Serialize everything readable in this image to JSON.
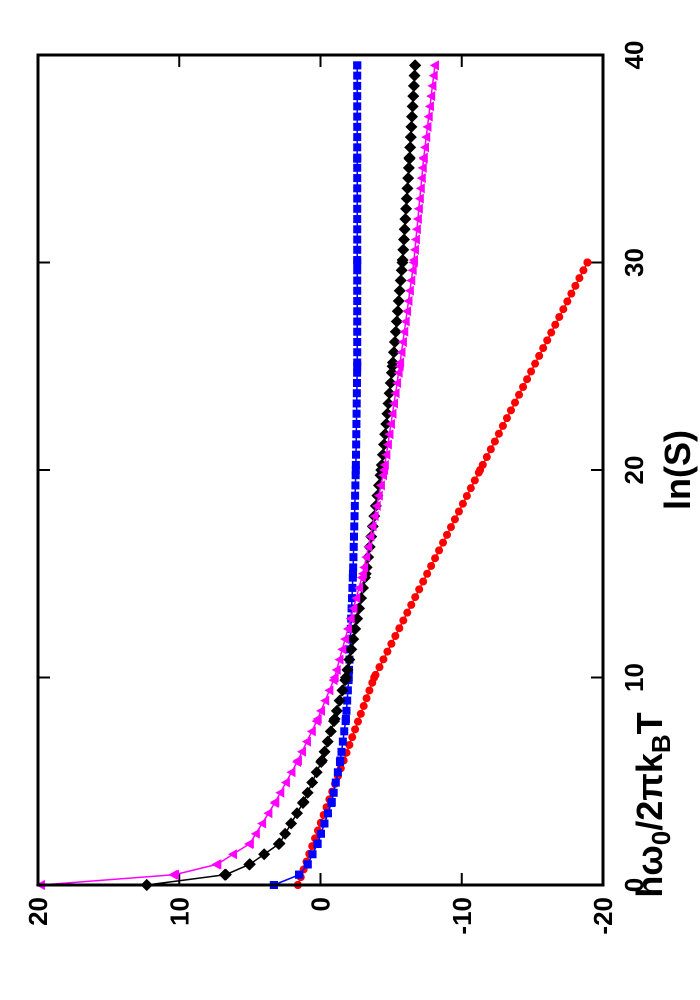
{
  "chart_data": {
    "type": "line",
    "rotated": "90deg-ccw",
    "xlabel_parts": {
      "h": "h",
      "omega": "ω",
      "sub0": "0",
      "mid": "/2",
      "pi": "π",
      "k": "k",
      "subB": "B",
      "T": "T"
    },
    "ylabel": "ln(S)",
    "xlim": [
      0,
      40
    ],
    "ylim": [
      -20,
      20
    ],
    "xticks": [
      0,
      10,
      20,
      30,
      40
    ],
    "yticks": [
      -20,
      -10,
      0,
      10,
      20
    ],
    "ytick_labels": [
      "-20",
      "-10",
      "0",
      "10",
      "20"
    ],
    "grid": false,
    "series": [
      {
        "color": "#ff0000",
        "marker": "circle",
        "x": [
          0,
          10,
          20,
          30
        ],
        "y": [
          1.6,
          -3.8,
          -11.3,
          -18.9
        ]
      },
      {
        "color": "#0000ff",
        "marker": "square",
        "x": [
          0,
          0.5,
          1,
          2,
          4,
          6,
          8,
          10,
          15,
          20,
          25,
          30,
          35,
          39.5
        ],
        "y": [
          3.3,
          1.5,
          0.9,
          0.2,
          -0.8,
          -1.4,
          -1.8,
          -2.0,
          -2.3,
          -2.5,
          -2.6,
          -2.6,
          -2.6,
          -2.6
        ]
      },
      {
        "color": "#000000",
        "marker": "diamond",
        "x": [
          0,
          0.5,
          1,
          2,
          4,
          6,
          8,
          10,
          15,
          20,
          25,
          30,
          35,
          39.5
        ],
        "y": [
          12.3,
          6.7,
          5.0,
          2.9,
          1.2,
          -0.1,
          -1.0,
          -1.8,
          -3.2,
          -4.3,
          -5.1,
          -5.8,
          -6.3,
          -6.7
        ]
      },
      {
        "color": "#ff00ff",
        "marker": "triangle",
        "x": [
          0,
          0.5,
          1,
          2,
          4,
          6,
          8,
          10,
          15,
          20,
          25,
          30,
          35,
          39.5
        ],
        "y": [
          19.8,
          10.3,
          7.3,
          5.0,
          3.2,
          1.6,
          0.2,
          -1.0,
          -3.0,
          -4.5,
          -5.6,
          -6.6,
          -7.3,
          -8.1
        ]
      }
    ]
  }
}
